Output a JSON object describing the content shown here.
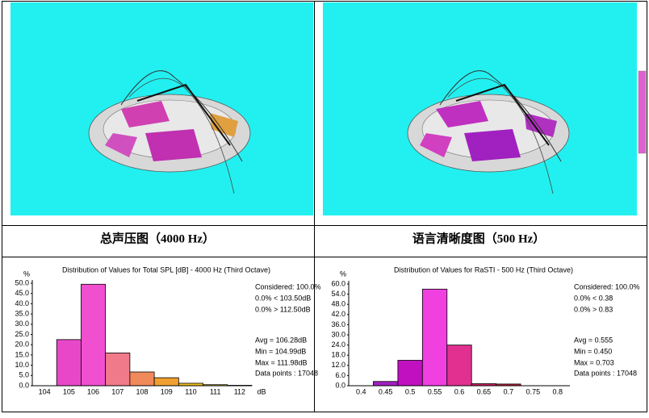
{
  "captions": [
    "总声压图（4000 Hz）",
    "语言清晰度图（500 Hz）"
  ],
  "chart_data": [
    {
      "type": "bar",
      "title": "Distribution of Values for Total SPL [dB]  - 4000 Hz (Third Octave)",
      "y_label": "%",
      "x_label": "dB",
      "categories": [
        "104",
        "105",
        "106",
        "107",
        "108",
        "109",
        "110",
        "111",
        "112"
      ],
      "values": [
        0,
        22.5,
        49.5,
        16,
        6.7,
        3.9,
        1.2,
        0.5,
        0.2
      ],
      "colors": [
        "#e040c0",
        "#e848c8",
        "#f050d0",
        "#f07a8a",
        "#f08a5a",
        "#f0a030",
        "#f0c020",
        "#e8d020",
        "#e8e030"
      ],
      "ylim": [
        0,
        50
      ],
      "yticks": [
        {
          "value": 0,
          "label": "0.0"
        },
        {
          "value": 5,
          "label": "5.0"
        },
        {
          "value": 10,
          "label": "10.0"
        },
        {
          "value": 15,
          "label": "15.0"
        },
        {
          "value": 20,
          "label": "20.0"
        },
        {
          "value": 25,
          "label": "25.0"
        },
        {
          "value": 30,
          "label": "30.0"
        },
        {
          "value": 35,
          "label": "35.0"
        },
        {
          "value": 40,
          "label": "40.0"
        },
        {
          "value": 45,
          "label": "45.0"
        },
        {
          "value": 50,
          "label": "50.0"
        }
      ],
      "stats": [
        "Considered: 100.0%",
        "0.0% < 103.50dB",
        "0.0% > 112.50dB",
        "Avg = 106.28dB",
        "Min = 104.99dB",
        "Max = 111.98dB",
        "Data points : 17048"
      ]
    },
    {
      "type": "bar",
      "title": "Distribution of Values for RaSTI  - 500 Hz (Third Octave)",
      "y_label": "%",
      "categories": [
        "0.4",
        "0.45",
        "0.5",
        "0.55",
        "0.6",
        "0.65",
        "0.7",
        "0.75",
        "0.8"
      ],
      "values": [
        0,
        2.5,
        15,
        57,
        24,
        1.2,
        1,
        0,
        0
      ],
      "colors": [
        "#a020c0",
        "#a020c0",
        "#c010c0",
        "#f040e0",
        "#e03090",
        "#d02060",
        "#c02040",
        "#c02040",
        "#c02040"
      ],
      "ylim": [
        0,
        60
      ],
      "yticks": [
        {
          "value": 0,
          "label": "0.0"
        },
        {
          "value": 6,
          "label": "6.0"
        },
        {
          "value": 12,
          "label": "12.0"
        },
        {
          "value": 18,
          "label": "18.0"
        },
        {
          "value": 24,
          "label": "24.0"
        },
        {
          "value": 30,
          "label": "30.0"
        },
        {
          "value": 36,
          "label": "36.0"
        },
        {
          "value": 42,
          "label": "42.0"
        },
        {
          "value": 48,
          "label": "48.0"
        },
        {
          "value": 54,
          "label": "54.0"
        },
        {
          "value": 60,
          "label": "60.0"
        }
      ],
      "stats": [
        "Considered: 100.0%",
        "0.0% < 0.38",
        "0.0% > 0.83",
        "Avg = 0.555",
        "Min = 0.450",
        "Max = 0.703",
        "Data points : 17048"
      ]
    }
  ]
}
